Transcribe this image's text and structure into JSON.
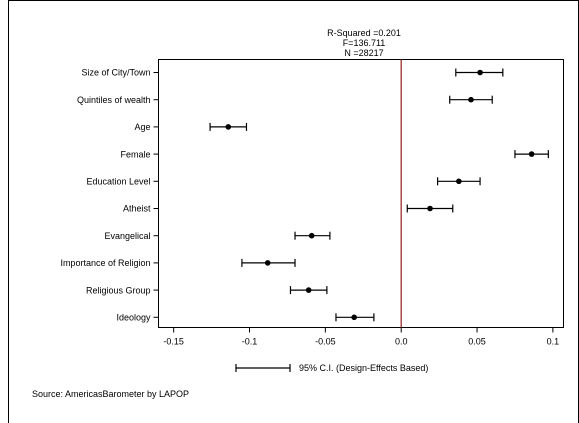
{
  "chart_data": {
    "type": "coefficient-plot",
    "stats": [
      "R-Squared =0.201",
      "F=136.711",
      "N =28217"
    ],
    "categories": [
      "Size of City/Town",
      "Quintiles of wealth",
      "Age",
      "Female",
      "Education Level",
      "Atheist",
      "Evangelical",
      "Importance of Religion",
      "Religious Group",
      "Ideology"
    ],
    "estimates": [
      0.052,
      0.046,
      -0.114,
      0.086,
      0.038,
      0.019,
      -0.059,
      -0.088,
      -0.061,
      -0.031
    ],
    "ci_low": [
      0.036,
      0.032,
      -0.126,
      0.075,
      0.024,
      0.004,
      -0.07,
      -0.105,
      -0.073,
      -0.043
    ],
    "ci_high": [
      0.067,
      0.06,
      -0.102,
      0.097,
      0.052,
      0.034,
      -0.047,
      -0.07,
      -0.049,
      -0.018
    ],
    "x_ticks": [
      -0.15,
      -0.1,
      -0.05,
      0,
      0.05,
      0.1
    ],
    "x_tick_labels": [
      "-0.15",
      "-0.1",
      "-0.05",
      "0.0",
      "0.05",
      "0.1"
    ],
    "xlim": [
      -0.16,
      0.107
    ],
    "reference_line": 0,
    "reference_line_color": "#9b2d2d",
    "legend": "95% C.I. (Design-Effects Based)",
    "legend_placement": "bottom-center",
    "source": "Source: AmericasBarometer by LAPOP",
    "grid": false
  }
}
